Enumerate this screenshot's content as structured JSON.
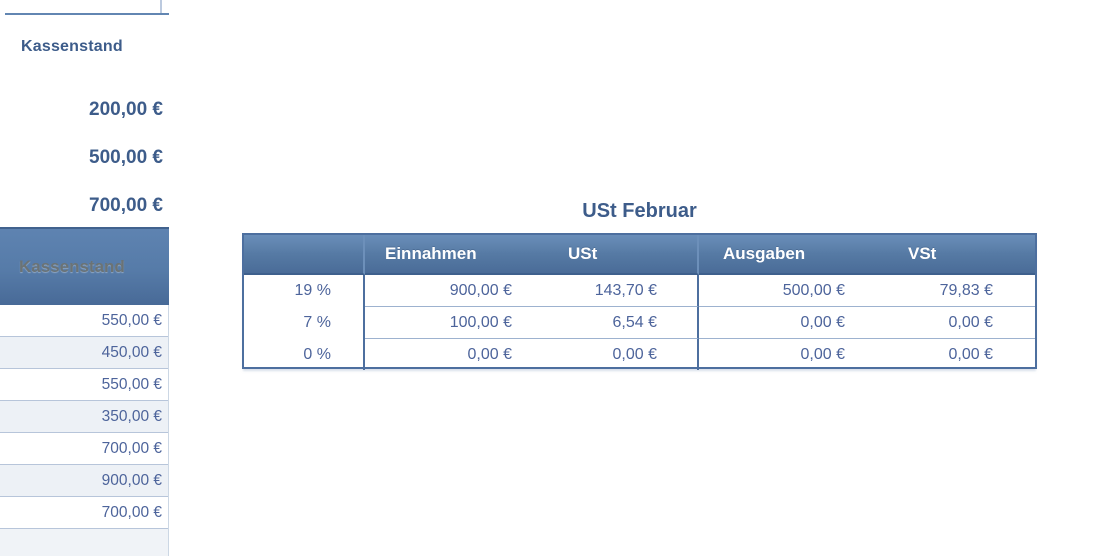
{
  "left_sheet": {
    "section_label": "Kassenstand",
    "summary_values": [
      "200,00 €",
      "500,00 €",
      "700,00 €"
    ],
    "column_header": "Kassenstand",
    "rows": [
      "550,00 €",
      "450,00 €",
      "550,00 €",
      "350,00 €",
      "700,00 €",
      "900,00 €",
      "700,00 €"
    ]
  },
  "ust_table": {
    "title": "USt Februar",
    "headers": {
      "einnahmen": "Einnahmen",
      "ust": "USt",
      "ausgaben": "Ausgaben",
      "vst": "VSt"
    },
    "rows": [
      {
        "rate": "19 %",
        "einnahmen": "900,00 €",
        "ust": "143,70 €",
        "ausgaben": "500,00 €",
        "vst": "79,83 €"
      },
      {
        "rate": "7 %",
        "einnahmen": "100,00 €",
        "ust": "6,54 €",
        "ausgaben": "0,00 €",
        "vst": "0,00 €"
      },
      {
        "rate": "0 %",
        "einnahmen": "0,00 €",
        "ust": "0,00 €",
        "ausgaben": "0,00 €",
        "vst": "0,00 €"
      }
    ]
  },
  "colors": {
    "accent_blue": "#4d6f9f",
    "header_gradient_top": "#6a8eb9",
    "header_gradient_bottom": "#4a6c98",
    "text_dark_blue": "#3d5c8a",
    "text_data_blue": "#4d649b",
    "alt_row_bg": "#edf1f6",
    "row_separator": "#b7c5da",
    "inner_separator": "#9db2cf"
  }
}
